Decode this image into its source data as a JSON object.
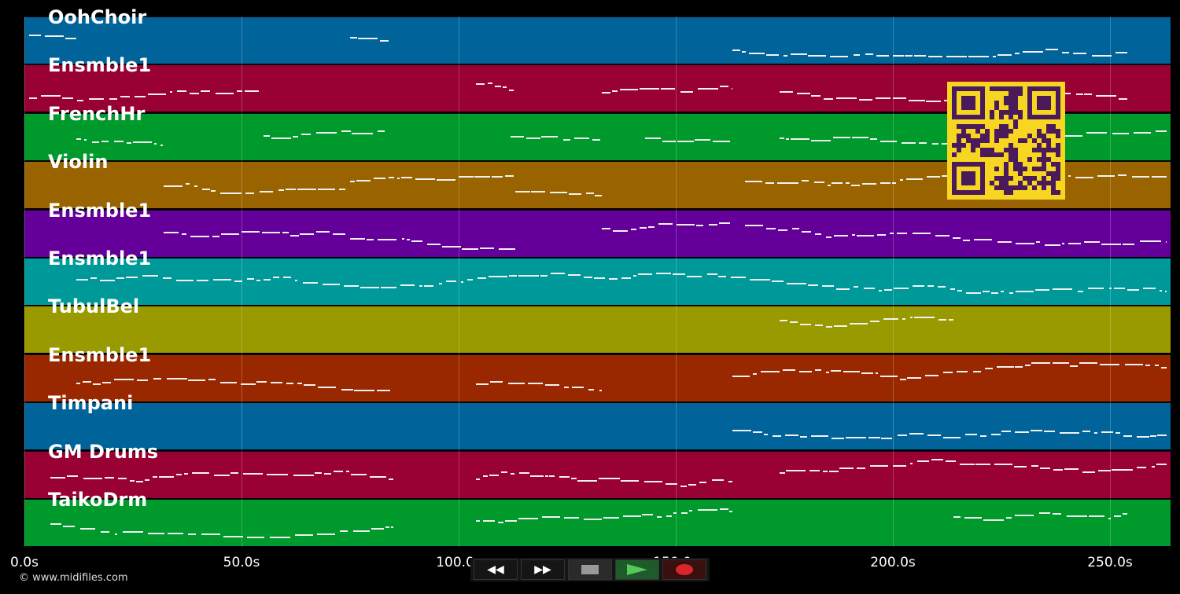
{
  "app": {
    "credit": "© www.midifiles.com"
  },
  "timeline": {
    "ticks": [
      "0.0s",
      "50.0s",
      "100.0s",
      "150.0s",
      "200.0s",
      "250.0s"
    ],
    "duration_s": 264
  },
  "tracks": [
    {
      "name": "OohChoir",
      "color": "#00639a"
    },
    {
      "name": "Ensmble1",
      "color": "#990033"
    },
    {
      "name": "FrenchHr",
      "color": "#00992b"
    },
    {
      "name": "Violin",
      "color": "#996400"
    },
    {
      "name": "Ensmble1",
      "color": "#640099"
    },
    {
      "name": "Ensmble1",
      "color": "#009999"
    },
    {
      "name": "TubulBel",
      "color": "#999900"
    },
    {
      "name": "Ensmble1",
      "color": "#992800"
    },
    {
      "name": "Timpani",
      "color": "#00649b"
    },
    {
      "name": "GM Drums",
      "color": "#990033"
    },
    {
      "name": "TaikoDrm",
      "color": "#00992b"
    }
  ],
  "note_regions": [
    [
      [
        1,
        12
      ],
      [
        75,
        85
      ],
      [
        163,
        254
      ]
    ],
    [
      [
        1,
        54
      ],
      [
        104,
        113
      ],
      [
        133,
        163
      ],
      [
        174,
        254
      ]
    ],
    [
      [
        12,
        32
      ],
      [
        55,
        84
      ],
      [
        112,
        133
      ],
      [
        143,
        163
      ],
      [
        174,
        263
      ]
    ],
    [
      [
        32,
        74
      ],
      [
        75,
        113
      ],
      [
        113,
        133
      ],
      [
        166,
        263
      ]
    ],
    [
      [
        32,
        74
      ],
      [
        75,
        113
      ],
      [
        133,
        163
      ],
      [
        166,
        263
      ]
    ],
    [
      [
        12,
        263
      ]
    ],
    [
      [
        174,
        214
      ]
    ],
    [
      [
        12,
        85
      ],
      [
        104,
        133
      ],
      [
        163,
        263
      ]
    ],
    [
      [
        163,
        263
      ]
    ],
    [
      [
        6,
        85
      ],
      [
        104,
        163
      ],
      [
        174,
        263
      ]
    ],
    [
      [
        6,
        85
      ],
      [
        104,
        163
      ],
      [
        214,
        254
      ]
    ]
  ],
  "transport": {
    "rewind_label": "◀◀",
    "forward_label": "▶▶",
    "rewind_icon": "rewind-icon",
    "forward_icon": "fast-forward-icon",
    "stop_icon": "stop-icon",
    "play_icon": "play-icon",
    "record_icon": "record-icon"
  }
}
